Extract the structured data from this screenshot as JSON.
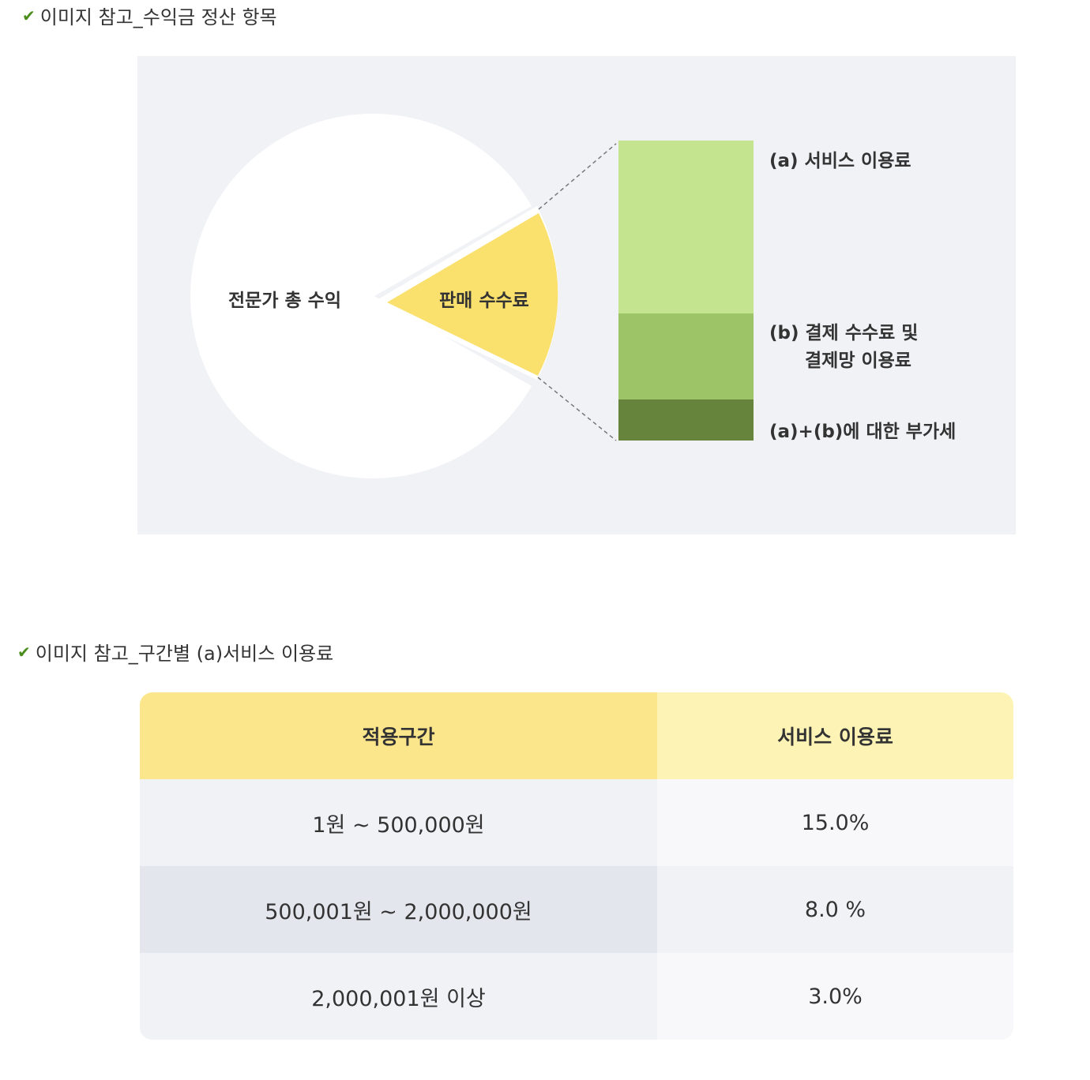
{
  "captions": {
    "check_icon": "checkmark-icon",
    "first": "이미지 참고_수익금 정산 항목",
    "second": "이미지 참고_구간별 (a)서비스 이용료"
  },
  "diagram": {
    "pie_total_label": "전문가 총 수익",
    "pie_slice_label": "판매 수수료",
    "bar_labels": {
      "a": "(a) 서비스 이용료",
      "b_line1": "(b) 결제 수수료 및",
      "b_line2": "결제망 이용료",
      "vat": "(a)+(b)에 대한 부가세"
    },
    "colors": {
      "background": "#f1f2f6",
      "pie": "#ffffff",
      "slice": "#fae06c",
      "bar_a": "#c4e48f",
      "bar_b": "#9dc466",
      "bar_vat": "#66843c"
    }
  },
  "fee_table": {
    "headers": [
      "적용구간",
      "서비스 이용료"
    ],
    "rows": [
      [
        "1원 ~ 500,000원",
        "15.0%"
      ],
      [
        "500,001원 ~ 2,000,000원",
        "8.0 %"
      ],
      [
        "2,000,001원 이상",
        "3.0%"
      ]
    ]
  }
}
